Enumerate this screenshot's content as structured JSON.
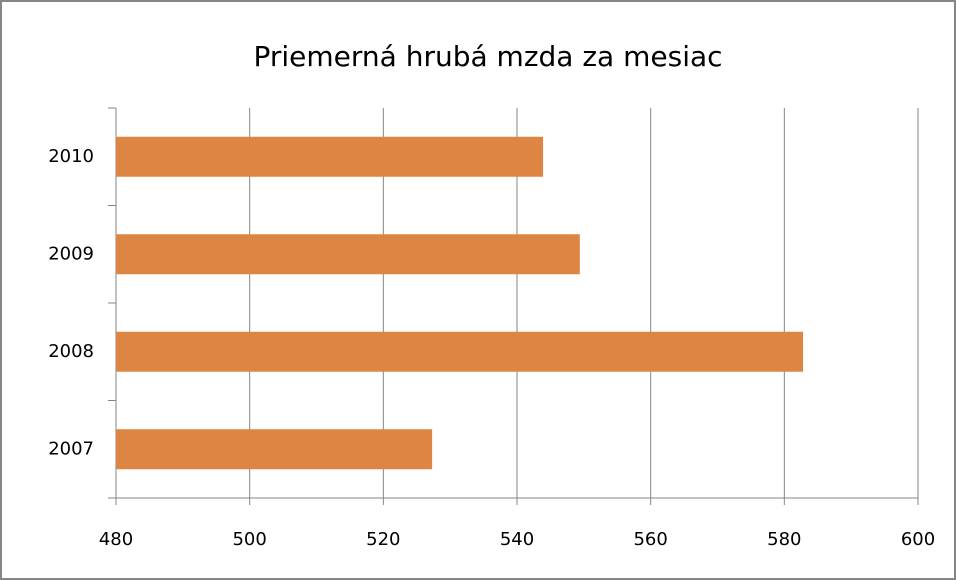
{
  "chart_data": {
    "type": "bar",
    "orientation": "horizontal",
    "title": "Priemerná hrubá mzda za mesiac",
    "categories": [
      "2007",
      "2008",
      "2009",
      "2010"
    ],
    "values": [
      527.3,
      582.8,
      549.4,
      543.9
    ],
    "color": "#dd8643",
    "xlim": [
      480,
      600
    ],
    "xticks": [
      480,
      500,
      520,
      540,
      560,
      580,
      600
    ],
    "grid": true
  }
}
